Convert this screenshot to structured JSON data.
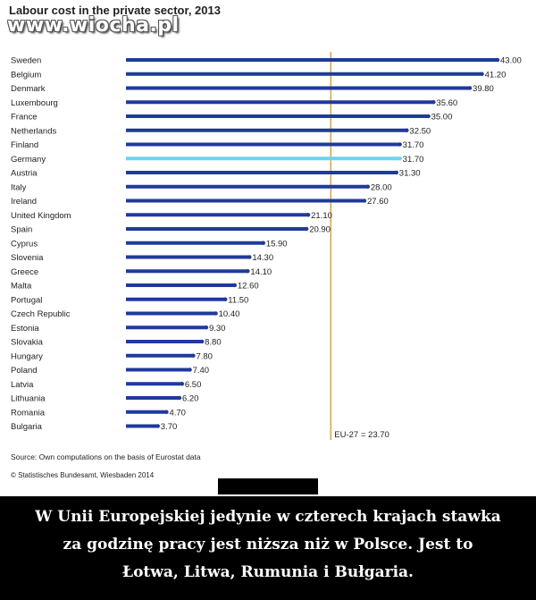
{
  "watermark": "www.wiocha.pl",
  "chart_data": {
    "type": "bar",
    "orientation": "horizontal",
    "title": "Labour cost in the private sector, 2013",
    "categories": [
      "Sweden",
      "Belgium",
      "Denmark",
      "Luxembourg",
      "France",
      "Netherlands",
      "Finland",
      "Germany",
      "Austria",
      "Italy",
      "Ireland",
      "United Kingdom",
      "Spain",
      "Cyprus",
      "Slovenia",
      "Greece",
      "Malta",
      "Portugal",
      "Czech Republic",
      "Estonia",
      "Slovakia",
      "Hungary",
      "Poland",
      "Latvia",
      "Lithuania",
      "Romania",
      "Bulgaria"
    ],
    "values": [
      43.0,
      41.2,
      39.8,
      35.6,
      35.0,
      32.5,
      31.7,
      31.7,
      31.3,
      28.0,
      27.6,
      21.1,
      20.9,
      15.9,
      14.3,
      14.1,
      12.6,
      11.5,
      10.4,
      9.3,
      8.8,
      7.8,
      7.4,
      6.5,
      6.2,
      4.7,
      3.7
    ],
    "value_labels": [
      "43.00",
      "41.20",
      "39.80",
      "35.60",
      "35.00",
      "32.50",
      "31.70",
      "31.70",
      "31.30",
      "28.00",
      "27.60",
      "21.10",
      "20.90",
      "15.90",
      "14.30",
      "14.10",
      "12.60",
      "11.50",
      "10.40",
      "9.30",
      "8.80",
      "7.80",
      "7.40",
      "6.50",
      "6.20",
      "4.70",
      "3.70"
    ],
    "highlight": "Germany",
    "bar_color": "#1f3a9e",
    "highlight_color": "#6fd3f0",
    "reference_line": {
      "value": 23.7,
      "label": "EU-27 = 23.70",
      "color": "#d9a53a"
    },
    "xlim": [
      0,
      43.0
    ],
    "grid": false,
    "legend": "none"
  },
  "source_note": "Source: Own computations on the basis of Eurostat data",
  "publisher_note": "© Statistisches Bundesamt, Wiesbaden 2014",
  "caption": {
    "line1": "W Unii Europejskiej jedynie w czterech krajach stawka",
    "line2": "za godzinę pracy jest niższa niż w Polsce. Jest to",
    "line3": "Łotwa, Litwa, Rumunia i Bułgaria."
  }
}
